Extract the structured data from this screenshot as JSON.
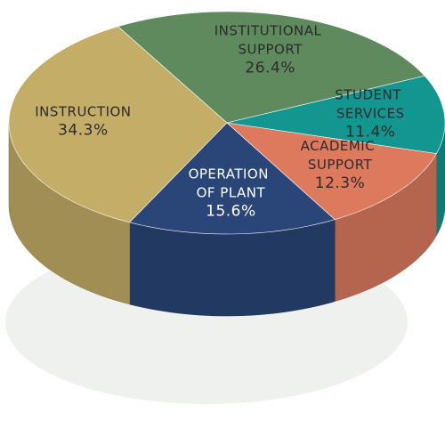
{
  "chart_data": {
    "type": "pie3d",
    "categories": [
      "INSTITUTIONAL SUPPORT",
      "STUDENT SERVICES",
      "ACADEMIC SUPPORT",
      "OPERATION OF PLANT",
      "INSTRUCTION"
    ],
    "values": [
      26.4,
      11.4,
      12.3,
      15.6,
      34.3
    ],
    "value_labels": [
      "26.4%",
      "11.4%",
      "12.3%",
      "15.6%",
      "34.3%"
    ],
    "colors": [
      "#5e8a5e",
      "#12968f",
      "#dd7a5e",
      "#2a4577",
      "#c4ad66"
    ]
  }
}
